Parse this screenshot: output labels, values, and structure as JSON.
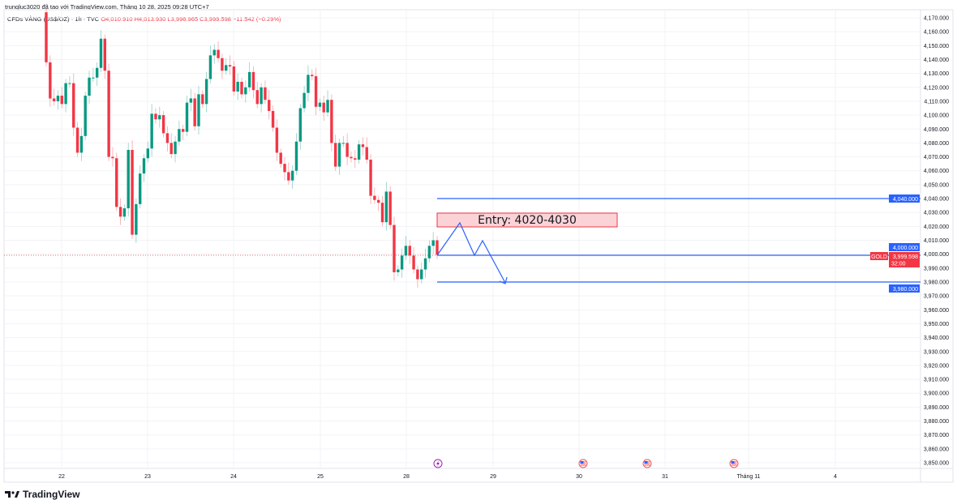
{
  "header": {
    "credit": "trungluc3020 đã tạo với TradingView.com, Tháng 10 28, 2025 09:28 UTC+7",
    "symbol": "CFDs VÀNG (US$/OZ) · 1h · TVC",
    "open": "O4,010.910",
    "high": "H4,013.930",
    "low": "L3,996.965",
    "close": "C3,999.598",
    "change": "−11.542 (−0.29%)"
  },
  "chart_data": {
    "type": "candlestick",
    "first_open": 4174,
    "closes": [
      4138,
      4112,
      4110,
      4114,
      4108,
      4123,
      4123,
      4091,
      4073,
      4085,
      4114,
      4127,
      4127,
      4134,
      4155,
      4132,
      4070,
      4069,
      4034,
      4027,
      4033,
      4075,
      4014,
      4036,
      4058,
      4069,
      4076,
      4101,
      4097,
      4100,
      4087,
      4080,
      4072,
      4081,
      4090,
      4088,
      4109,
      4112,
      4092,
      4115,
      4108,
      4126,
      4143,
      4147,
      4141,
      4132,
      4136,
      4135,
      4117,
      4124,
      4115,
      4120,
      4131,
      4118,
      4108,
      4120,
      4111,
      4103,
      4091,
      4073,
      4065,
      4059,
      4053,
      4060,
      4081,
      4105,
      4116,
      4129,
      4128,
      4106,
      4109,
      4102,
      4111,
      4080,
      4063,
      4080,
      4080,
      4070,
      4069,
      4068,
      4079,
      4077,
      4068,
      4042,
      4039,
      4037,
      4023,
      4045,
      4021,
      3987,
      3989,
      3999,
      4006,
      3999,
      3989,
      3982,
      3989,
      3997,
      4006,
      4010,
      3999.598
    ],
    "ylim": [
      3850,
      4170
    ],
    "y_ticks": [
      "4,170.000",
      "4,160.000",
      "4,150.000",
      "4,140.000",
      "4,130.000",
      "4,120.000",
      "4,110.000",
      "4,100.000",
      "4,090.000",
      "4,080.000",
      "4,070.000",
      "4,060.000",
      "4,050.000",
      "4,040.000",
      "4,030.000",
      "4,020.000",
      "4,010.000",
      "4,000.000",
      "3,990.000",
      "3,980.000",
      "3,970.000",
      "3,960.000",
      "3,950.000",
      "3,940.000",
      "3,930.000",
      "3,920.000",
      "3,910.000",
      "3,900.000",
      "3,890.000",
      "3,880.000",
      "3,870.000",
      "3,860.000",
      "3,850.000"
    ],
    "x_ticks": [
      "22",
      "23",
      "24",
      "25",
      "28",
      "29",
      "30",
      "31",
      "Tháng 11",
      "4"
    ],
    "up_color": "#089981",
    "down_color": "#f23645",
    "grid": true
  },
  "annotations": {
    "entry_label": "Entry: 4020-4030",
    "level_high": "4,040.000",
    "level_mid": "4,000.000",
    "level_low": "3,980.000",
    "price_tag": "GOLD",
    "current_price": "3,999.598",
    "countdown": "32:00",
    "line_color": "#2962ff"
  },
  "events": [
    "lightning-icon",
    "us-flag-icon",
    "us-flag-icon",
    "us-flag-icon"
  ],
  "footer": {
    "logo": "TradingView"
  }
}
